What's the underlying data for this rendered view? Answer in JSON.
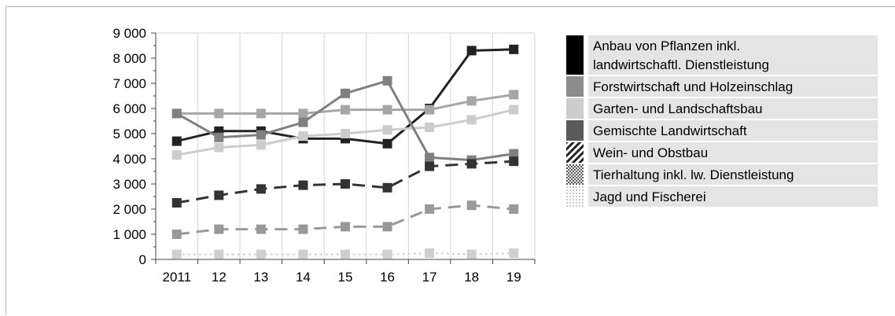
{
  "chart_data": {
    "type": "line",
    "title": "",
    "xlabel": "",
    "ylabel": "",
    "categories": [
      "2011",
      "12",
      "13",
      "14",
      "15",
      "16",
      "17",
      "18",
      "19"
    ],
    "ylim": [
      0,
      9000
    ],
    "yticks": [
      0,
      1000,
      2000,
      3000,
      4000,
      5000,
      6000,
      7000,
      8000,
      9000
    ],
    "ytick_labels": [
      "0",
      "1 000",
      "2 000",
      "3 000",
      "4 000",
      "5 000",
      "6 000",
      "7 000",
      "8 000",
      "9 000"
    ],
    "grid": true,
    "legend_position": "right",
    "series": [
      {
        "name": "Anbau von Pflanzen inkl. landwirtschaftl. Dienstleistung",
        "values": [
          4700,
          5100,
          5100,
          4800,
          4800,
          4600,
          6000,
          8300,
          8350
        ],
        "color": "#222222",
        "style": "solid"
      },
      {
        "name": "Forstwirtschaft und Holzeinschlag",
        "values": [
          5800,
          5800,
          5800,
          5800,
          5950,
          5950,
          5950,
          6300,
          6550
        ],
        "color": "#a6a6a6",
        "style": "solid"
      },
      {
        "name": "Garten- und Landschaftsbau",
        "values": [
          4150,
          4450,
          4550,
          4900,
          5000,
          5150,
          5250,
          5550,
          5950
        ],
        "color": "#cccccc",
        "style": "solid"
      },
      {
        "name": "Gemischte Landwirtschaft",
        "values": [
          5800,
          4850,
          4950,
          5450,
          6600,
          7100,
          4050,
          3950,
          4200
        ],
        "color": "#808080",
        "style": "solid"
      },
      {
        "name": "Wein- und Obstbau",
        "values": [
          2250,
          2550,
          2800,
          2950,
          3000,
          2850,
          3700,
          3800,
          3900
        ],
        "color": "#333333",
        "style": "dashed"
      },
      {
        "name": "Tierhaltung inkl. lw. Dienstleistung",
        "values": [
          1000,
          1200,
          1200,
          1200,
          1300,
          1300,
          2000,
          2150,
          2000
        ],
        "color": "#999999",
        "style": "dashed"
      },
      {
        "name": "Jagd und Fischerei",
        "values": [
          200,
          200,
          200,
          200,
          200,
          200,
          250,
          200,
          250
        ],
        "color": "#cfcfcf",
        "style": "dotted"
      }
    ]
  },
  "legend": {
    "items": [
      {
        "lines": [
          "Anbau von Pflanzen inkl.",
          "landwirtschaftl. Dienstleistung"
        ],
        "swatch": "solid-black"
      },
      {
        "lines": [
          "Forstwirtschaft und Holzeinschlag"
        ],
        "swatch": "solid-mid-gray"
      },
      {
        "lines": [
          "Garten- und Landschaftsbau"
        ],
        "swatch": "solid-light-gray"
      },
      {
        "lines": [
          "Gemischte Landwirtschaft"
        ],
        "swatch": "solid-dark-gray"
      },
      {
        "lines": [
          "Wein- und Obstbau"
        ],
        "swatch": "diagonal-hatch"
      },
      {
        "lines": [
          "Tierhaltung inkl. lw. Dienstleistung"
        ],
        "swatch": "dense-dots"
      },
      {
        "lines": [
          "Jagd und Fischerei"
        ],
        "swatch": "sparse-dots"
      }
    ]
  }
}
